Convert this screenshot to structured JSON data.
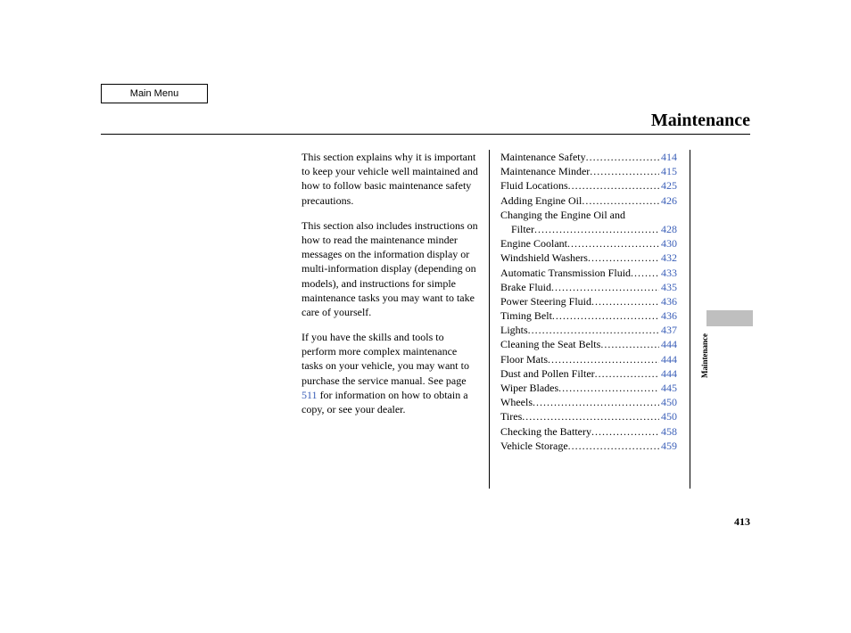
{
  "mainMenu": "Main Menu",
  "title": "Maintenance",
  "sideLabel": "Maintenance",
  "pageNumber": "413",
  "pageRef": "511",
  "intro": {
    "p1": "This section explains why it is important to keep your vehicle well maintained and how to follow basic maintenance safety precautions.",
    "p2": "This section also includes instructions on how to read the maintenance minder messages on the information display or multi-information display (depending on models), and instructions for simple maintenance tasks you may want to take care of yourself.",
    "p3a": "If you have the skills and tools to perform more complex maintenance tasks on your vehicle, you may want to purchase the service manual. See page ",
    "p3b": " for information on how to obtain a copy, or see your dealer."
  },
  "toc": [
    {
      "label": "Maintenance Safety",
      "page": "414",
      "indent": false,
      "wrap": false
    },
    {
      "label": "Maintenance Minder",
      "page": "415",
      "indent": false,
      "wrap": false
    },
    {
      "label": "Fluid Locations",
      "page": "425",
      "indent": false,
      "wrap": false
    },
    {
      "label": "Adding Engine Oil",
      "page": "426",
      "indent": false,
      "wrap": false
    },
    {
      "label": "Changing the Engine Oil and",
      "page": "",
      "indent": false,
      "wrap": true
    },
    {
      "label": "Filter",
      "page": "428",
      "indent": true,
      "wrap": false
    },
    {
      "label": "Engine Coolant",
      "page": "430",
      "indent": false,
      "wrap": false
    },
    {
      "label": "Windshield Washers",
      "page": "432",
      "indent": false,
      "wrap": false
    },
    {
      "label": "Automatic Transmission Fluid",
      "page": "433",
      "indent": false,
      "wrap": false
    },
    {
      "label": "Brake Fluid",
      "page": "435",
      "indent": false,
      "wrap": false
    },
    {
      "label": "Power Steering Fluid",
      "page": "436",
      "indent": false,
      "wrap": false
    },
    {
      "label": "Timing Belt",
      "page": "436",
      "indent": false,
      "wrap": false
    },
    {
      "label": "Lights",
      "page": "437",
      "indent": false,
      "wrap": false
    },
    {
      "label": "Cleaning the Seat Belts",
      "page": "444",
      "indent": false,
      "wrap": false
    },
    {
      "label": "Floor Mats",
      "page": "444",
      "indent": false,
      "wrap": false
    },
    {
      "label": "Dust and Pollen Filter",
      "page": "444",
      "indent": false,
      "wrap": false
    },
    {
      "label": "Wiper Blades",
      "page": "445",
      "indent": false,
      "wrap": false
    },
    {
      "label": "Wheels",
      "page": "450",
      "indent": false,
      "wrap": false
    },
    {
      "label": "Tires",
      "page": "450",
      "indent": false,
      "wrap": false
    },
    {
      "label": "Checking the Battery",
      "page": "458",
      "indent": false,
      "wrap": false
    },
    {
      "label": "Vehicle Storage",
      "page": "459",
      "indent": false,
      "wrap": false
    }
  ]
}
